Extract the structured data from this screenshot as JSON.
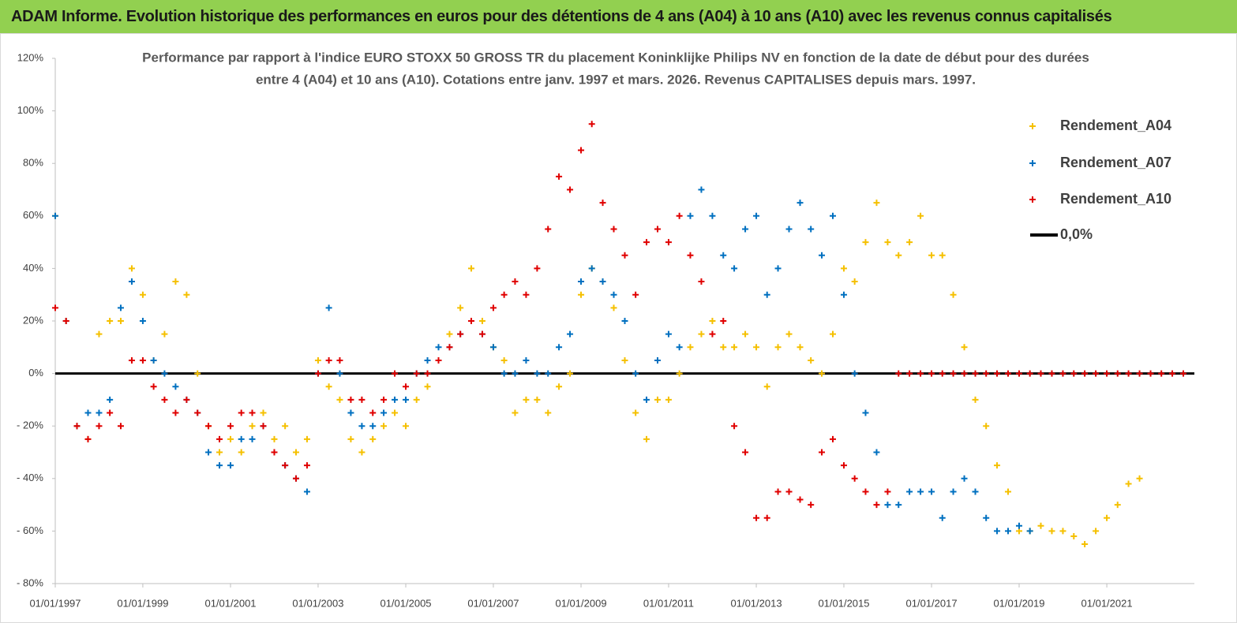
{
  "header": {
    "title": "ADAM Informe. Evolution historique des performances en euros pour des détentions de 4 ans (A04) à 10 ans (A10) avec les revenus connus capitalisés"
  },
  "chart_data": {
    "type": "scatter",
    "subtitle": [
      "Performance par rapport à l'indice EURO STOXX 50 GROSS TR  du placement Koninklijke Philips NV en fonction de la date de début pour des durées",
      "entre 4 (A04) et 10 ans (A10).  Cotations entre janv. 1997 et mars. 2026.  Revenus CAPITALISES depuis mars. 1997."
    ],
    "x": [
      "1997-01-01",
      "1997-04-01",
      "1997-07-01",
      "1997-10-01",
      "1998-01-01",
      "1998-04-01",
      "1998-07-01",
      "1998-10-01",
      "1999-01-01",
      "1999-04-01",
      "1999-07-01",
      "1999-10-01",
      "2000-01-01",
      "2000-04-01",
      "2000-07-01",
      "2000-10-01",
      "2001-01-01",
      "2001-04-01",
      "2001-07-01",
      "2001-10-01",
      "2002-01-01",
      "2002-04-01",
      "2002-07-01",
      "2002-10-01",
      "2003-01-01",
      "2003-04-01",
      "2003-07-01",
      "2003-10-01",
      "2004-01-01",
      "2004-04-01",
      "2004-07-01",
      "2004-10-01",
      "2005-01-01",
      "2005-04-01",
      "2005-07-01",
      "2005-10-01",
      "2006-01-01",
      "2006-04-01",
      "2006-07-01",
      "2006-10-01",
      "2007-01-01",
      "2007-04-01",
      "2007-07-01",
      "2007-10-01",
      "2008-01-01",
      "2008-04-01",
      "2008-07-01",
      "2008-10-01",
      "2009-01-01",
      "2009-04-01",
      "2009-07-01",
      "2009-10-01",
      "2010-01-01",
      "2010-04-01",
      "2010-07-01",
      "2010-10-01",
      "2011-01-01",
      "2011-04-01",
      "2011-07-01",
      "2011-10-01",
      "2012-01-01",
      "2012-04-01",
      "2012-07-01",
      "2012-10-01",
      "2013-01-01",
      "2013-04-01",
      "2013-07-01",
      "2013-10-01",
      "2014-01-01",
      "2014-04-01",
      "2014-07-01",
      "2014-10-01",
      "2015-01-01",
      "2015-04-01",
      "2015-07-01",
      "2015-10-01",
      "2016-01-01",
      "2016-04-01",
      "2016-07-01",
      "2016-10-01",
      "2017-01-01",
      "2017-04-01",
      "2017-07-01",
      "2017-10-01",
      "2018-01-01",
      "2018-04-01",
      "2018-07-01",
      "2018-10-01",
      "2019-01-01",
      "2019-04-01",
      "2019-07-01",
      "2019-10-01",
      "2020-01-01",
      "2020-04-01",
      "2020-07-01",
      "2020-10-01",
      "2021-01-01",
      "2021-04-01",
      "2021-07-01",
      "2021-10-01",
      "2022-01-01",
      "2022-04-01",
      "2022-07-01",
      "2022-10-01"
    ],
    "series": [
      {
        "name": "Rendement_A04",
        "color": "#f5c000",
        "values": [
          60,
          20,
          -20,
          -25,
          15,
          20,
          20,
          40,
          30,
          5,
          15,
          35,
          30,
          0,
          -20,
          -30,
          -25,
          -30,
          -20,
          -15,
          -25,
          -20,
          -30,
          -25,
          5,
          -5,
          -10,
          -25,
          -30,
          -25,
          -20,
          -15,
          -20,
          -10,
          -5,
          5,
          15,
          25,
          40,
          20,
          10,
          5,
          -15,
          -10,
          -10,
          -15,
          -5,
          0,
          30,
          40,
          35,
          25,
          5,
          -15,
          -25,
          -10,
          -10,
          0,
          10,
          15,
          20,
          10,
          10,
          15,
          10,
          -5,
          10,
          15,
          10,
          5,
          0,
          15,
          40,
          35,
          50,
          65,
          50,
          45,
          50,
          60,
          45,
          45,
          30,
          10,
          -10,
          -20,
          -35,
          -45,
          -60,
          -60,
          -58,
          -60,
          -60,
          -62,
          -65,
          -60,
          -55,
          -50,
          -42,
          -40,
          null,
          null,
          null,
          null
        ]
      },
      {
        "name": "Rendement_A07",
        "color": "#0070c0",
        "values": [
          60,
          20,
          -20,
          -15,
          -15,
          -10,
          25,
          35,
          20,
          5,
          0,
          -5,
          -10,
          -15,
          -30,
          -35,
          -35,
          -25,
          -25,
          -20,
          -30,
          -35,
          -40,
          -45,
          0,
          25,
          0,
          -15,
          -20,
          -20,
          -15,
          -10,
          -10,
          0,
          5,
          10,
          10,
          15,
          20,
          15,
          10,
          0,
          0,
          5,
          0,
          0,
          10,
          15,
          35,
          40,
          35,
          30,
          20,
          0,
          -10,
          5,
          15,
          10,
          60,
          70,
          60,
          45,
          40,
          55,
          60,
          30,
          40,
          55,
          65,
          55,
          45,
          60,
          30,
          0,
          -15,
          -30,
          -50,
          -50,
          -45,
          -45,
          -45,
          -55,
          -45,
          -40,
          -45,
          -55,
          -60,
          -60,
          -58,
          -60,
          null,
          null,
          null,
          null,
          null,
          null,
          null,
          null,
          null,
          null,
          null,
          null,
          null,
          null
        ]
      },
      {
        "name": "Rendement_A10",
        "color": "#e00000",
        "values": [
          25,
          20,
          -20,
          -25,
          -20,
          -15,
          -20,
          5,
          5,
          -5,
          -10,
          -15,
          -10,
          -15,
          -20,
          -25,
          -20,
          -15,
          -15,
          -20,
          -30,
          -35,
          -40,
          -35,
          0,
          5,
          5,
          -10,
          -10,
          -15,
          -10,
          0,
          -5,
          0,
          0,
          5,
          10,
          15,
          20,
          15,
          25,
          30,
          35,
          30,
          40,
          55,
          75,
          70,
          85,
          95,
          65,
          55,
          45,
          30,
          50,
          55,
          50,
          60,
          45,
          35,
          15,
          20,
          -20,
          -30,
          -55,
          -55,
          -45,
          -45,
          -48,
          -50,
          -30,
          -25,
          -35,
          -40,
          -45,
          -50,
          -45,
          0,
          0,
          0,
          0,
          0,
          0,
          0,
          0,
          0,
          0,
          0,
          0,
          0,
          0,
          0,
          0,
          0,
          0,
          0,
          0,
          0,
          0,
          0,
          0,
          0,
          0,
          0
        ]
      }
    ],
    "reference_line": {
      "name": "0,0%",
      "value": 0,
      "color": "#000000"
    },
    "xlim": [
      "1997-01-01",
      "2023-01-01"
    ],
    "xticks": [
      {
        "value": "1997-01-01",
        "label": "01/01/1997"
      },
      {
        "value": "1999-01-01",
        "label": "01/01/1999"
      },
      {
        "value": "2001-01-01",
        "label": "01/01/2001"
      },
      {
        "value": "2003-01-01",
        "label": "01/01/2003"
      },
      {
        "value": "2005-01-01",
        "label": "01/01/2005"
      },
      {
        "value": "2007-01-01",
        "label": "01/01/2007"
      },
      {
        "value": "2009-01-01",
        "label": "01/01/2009"
      },
      {
        "value": "2011-01-01",
        "label": "01/01/2011"
      },
      {
        "value": "2013-01-01",
        "label": "01/01/2013"
      },
      {
        "value": "2015-01-01",
        "label": "01/01/2015"
      },
      {
        "value": "2017-01-01",
        "label": "01/01/2017"
      },
      {
        "value": "2019-01-01",
        "label": "01/01/2019"
      },
      {
        "value": "2021-01-01",
        "label": "01/01/2021"
      }
    ],
    "ylim": [
      -80,
      120
    ],
    "yticks": [
      {
        "value": -80,
        "label": "- 80%"
      },
      {
        "value": -60,
        "label": "- 60%"
      },
      {
        "value": -40,
        "label": "- 40%"
      },
      {
        "value": -20,
        "label": "- 20%"
      },
      {
        "value": 0,
        "label": "0%"
      },
      {
        "value": 20,
        "label": "20%"
      },
      {
        "value": 40,
        "label": "40%"
      },
      {
        "value": 60,
        "label": "60%"
      },
      {
        "value": 80,
        "label": "80%"
      },
      {
        "value": 100,
        "label": "100%"
      },
      {
        "value": 120,
        "label": "120%"
      }
    ],
    "legend": "upper right"
  }
}
